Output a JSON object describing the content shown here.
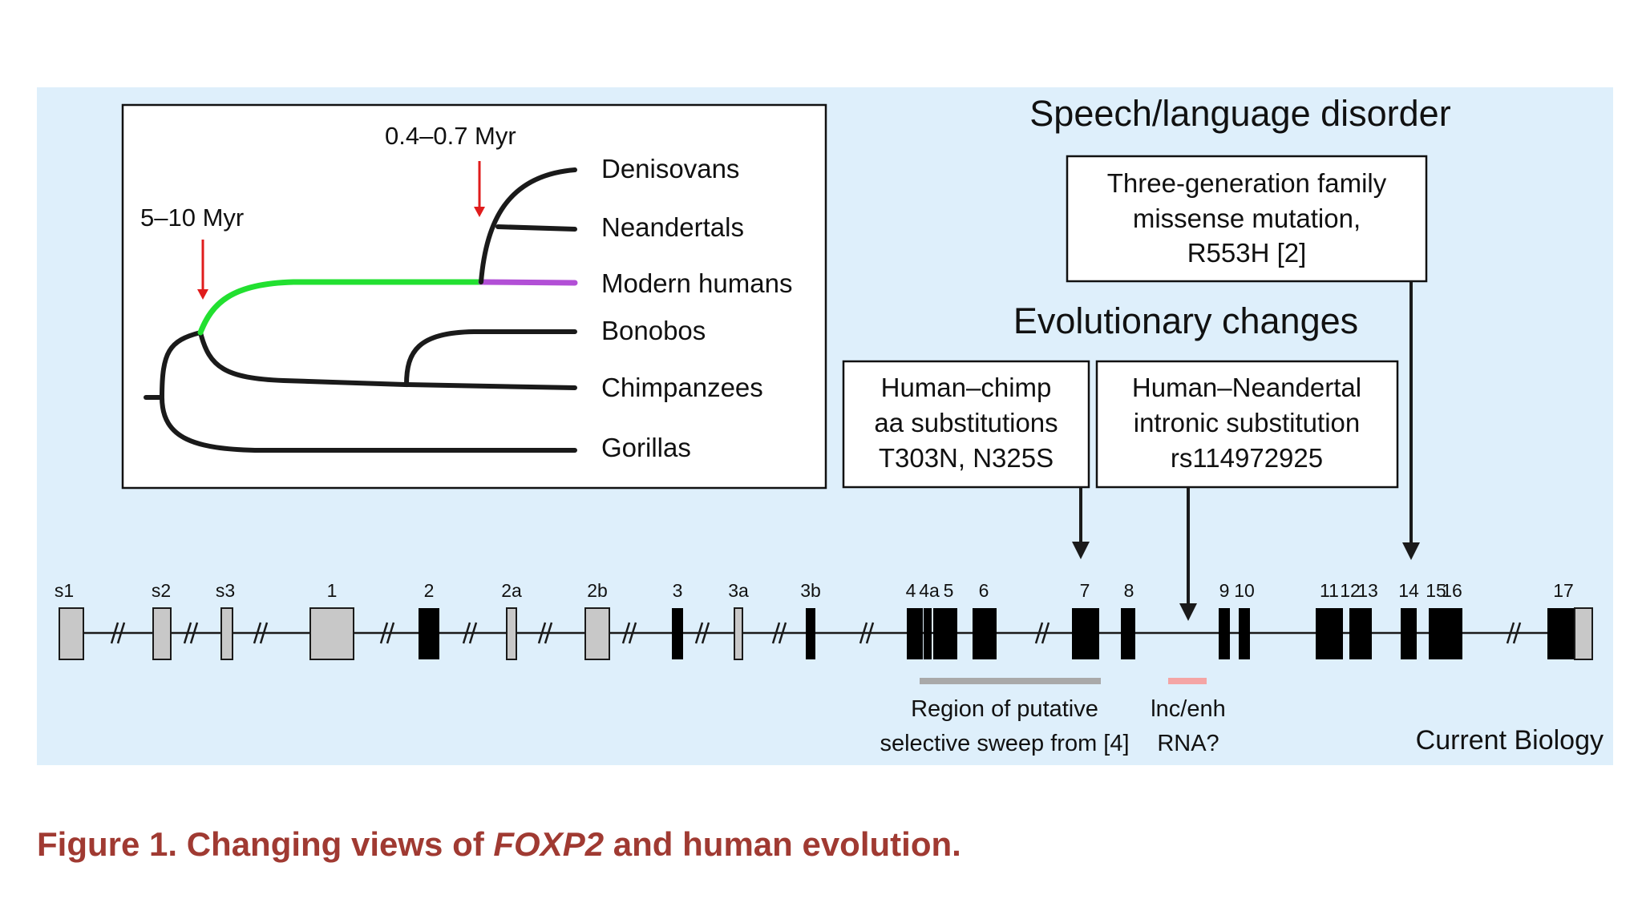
{
  "colors": {
    "panel_bg": "#deeffb",
    "tree_black": "#1a1a1a",
    "tree_green": "#22e030",
    "tree_purple": "#b24fd6",
    "marker_red": "#e01c1c",
    "exon_coding": "#000000",
    "exon_utr": "#c8c8c8",
    "sweep_bar": "#a9a9a9",
    "lncrna_bar": "#f4a5a5",
    "caption_red": "#a03a32"
  },
  "tree": {
    "species": [
      "Denisovans",
      "Neandertals",
      "Modern humans",
      "Bonobos",
      "Chimpanzees",
      "Gorillas"
    ],
    "markers": {
      "deep": "5–10 Myr",
      "archaic": "0.4–0.7 Myr"
    }
  },
  "annotations": {
    "speech": {
      "heading": "Speech/language disorder",
      "lines": [
        "Three-generation family",
        "missense mutation,",
        "R553H [2]"
      ]
    },
    "evolution": {
      "heading": "Evolutionary changes",
      "chimp_lines": [
        "Human–chimp",
        "aa substitutions",
        "T303N, N325S"
      ],
      "neandertal_lines": [
        "Human–Neandertal",
        "intronic substitution",
        "rs114972925"
      ]
    }
  },
  "gene": {
    "exons": [
      "s1",
      "s2",
      "s3",
      "1",
      "2",
      "2a",
      "2b",
      "3",
      "3a",
      "3b",
      "4",
      "4a",
      "5",
      "6",
      "7",
      "8",
      "9",
      "10",
      "11",
      "12",
      "13",
      "14",
      "15",
      "16",
      "17"
    ],
    "utr_exons": [
      "s1",
      "s2",
      "s3",
      "1",
      "2a",
      "2b",
      "3a"
    ],
    "sweep_label": [
      "Region of putative",
      "selective sweep from [4]"
    ],
    "lncrna_label": [
      "lnc/enh",
      "RNA?"
    ]
  },
  "credit": "Current Biology",
  "caption": {
    "prefix": "Figure 1.  Changing views of ",
    "gene_name": "FOXP2",
    "suffix": " and human evolution."
  }
}
